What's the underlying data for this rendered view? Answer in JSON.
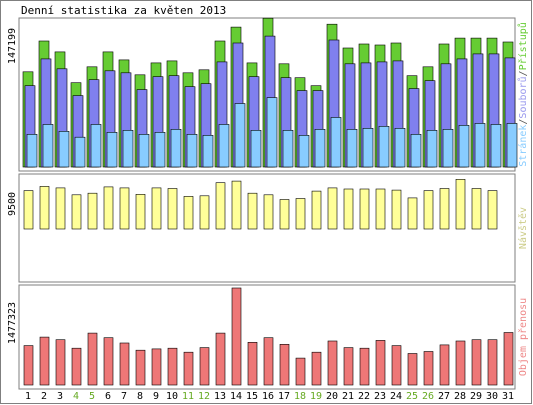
{
  "chart_data": {
    "type": "bar",
    "title": "Denní statistika za květen 2013",
    "days": [
      1,
      2,
      3,
      4,
      5,
      6,
      7,
      8,
      9,
      10,
      11,
      12,
      13,
      14,
      15,
      16,
      17,
      18,
      19,
      20,
      21,
      22,
      23,
      24,
      25,
      26,
      27,
      28,
      29,
      30,
      31
    ],
    "weekend_days": [
      4,
      5,
      11,
      12,
      18,
      19,
      25,
      26
    ],
    "colors": {
      "pristupu": "#66cc33",
      "souboru": "#8080ee",
      "stranek": "#88ccff",
      "navstev": "#ffff99",
      "prenos": "#ee7777",
      "weekend_label": "#66aa22",
      "weekday_label": "#000000",
      "stranek_label": "#88ccff",
      "souboru_label": "#9999ee",
      "pristupu_label": "#66cc33",
      "navstev_label": "#cccc88",
      "prenos_label": "#ee8888"
    },
    "panels": [
      {
        "ymax_label": "147199",
        "ymax": 147199,
        "legend": [
          "Stránek",
          "Souborů",
          "Přístupů"
        ],
        "series": [
          {
            "name": "Přístupů",
            "values": [
              96000,
              127000,
              116000,
              85000,
              101000,
              116000,
              108000,
              93000,
              105000,
              107000,
              95000,
              98000,
              127000,
              141000,
              105000,
              150000,
              104000,
              90000,
              82000,
              144000,
              120000,
              124000,
              123000,
              125000,
              92000,
              101000,
              124000,
              130000,
              130000,
              130000,
              126000
            ]
          },
          {
            "name": "Souborů",
            "values": [
              82000,
              109000,
              99000,
              72000,
              88000,
              97000,
              95000,
              78000,
              91000,
              92000,
              81000,
              84000,
              106000,
              125000,
              91000,
              132000,
              90000,
              77000,
              77000,
              128000,
              104000,
              105000,
              106000,
              107000,
              79000,
              87000,
              104000,
              109000,
              114000,
              114000,
              110000
            ]
          },
          {
            "name": "Stránek",
            "values": [
              33000,
              43000,
              36000,
              30000,
              43000,
              35000,
              37000,
              33000,
              35000,
              38000,
              33000,
              32000,
              43000,
              64000,
              37000,
              70000,
              37000,
              32000,
              38000,
              50000,
              38000,
              39000,
              41000,
              39000,
              33000,
              37000,
              38000,
              42000,
              44000,
              43000,
              44000
            ]
          }
        ]
      },
      {
        "ymax_label": "9500",
        "ymax": 9500,
        "legend": [
          "Návštěv"
        ],
        "series": [
          {
            "name": "Návštěv",
            "values": [
              7300,
              8100,
              7800,
              6500,
              6800,
              8000,
              7800,
              6600,
              7800,
              7700,
              6200,
              6300,
              8800,
              9100,
              6800,
              6500,
              5600,
              5800,
              7200,
              7800,
              7600,
              7600,
              7600,
              7400,
              5900,
              7300,
              7700,
              9450,
              7700,
              7300,
              null
            ]
          }
        ]
      },
      {
        "ymax_label": "1477323",
        "ymax": 1477323,
        "legend": [
          "Objem přenosu"
        ],
        "series": [
          {
            "name": "Objem přenosu",
            "values": [
              600000,
              730000,
              690000,
              560000,
              790000,
              720000,
              640000,
              530000,
              550000,
              560000,
              500000,
              570000,
              790000,
              1477000,
              650000,
              720000,
              620000,
              410000,
              500000,
              670000,
              570000,
              560000,
              680000,
              600000,
              480000,
              510000,
              610000,
              670000,
              690000,
              690000,
              800000
            ]
          }
        ]
      }
    ]
  }
}
